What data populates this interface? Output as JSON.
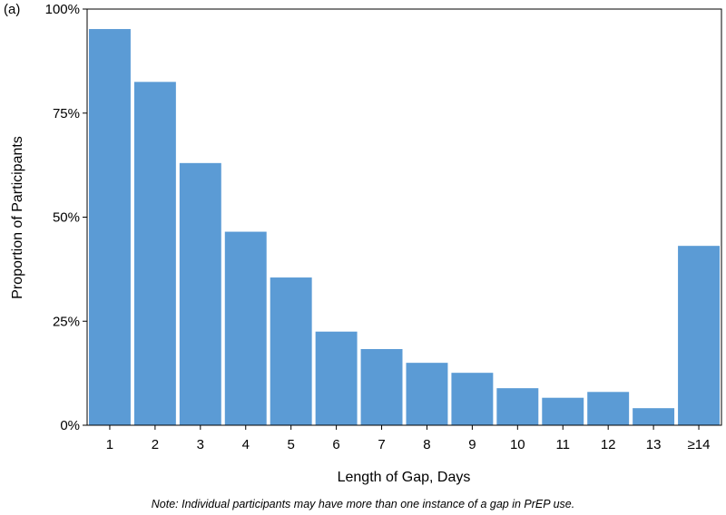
{
  "panel_label": "(a)",
  "note": "Note: Individual participants may have more than one instance of a gap in PrEP use.",
  "chart_data": {
    "type": "bar",
    "categories": [
      "1",
      "2",
      "3",
      "4",
      "5",
      "6",
      "7",
      "8",
      "9",
      "10",
      "11",
      "12",
      "13",
      "≥14"
    ],
    "values": [
      95.2,
      82.5,
      63.0,
      46.5,
      35.5,
      22.5,
      18.3,
      15.0,
      12.6,
      8.9,
      6.6,
      8.0,
      4.1,
      43.1
    ],
    "title": "",
    "xlabel": "Length of Gap, Days",
    "ylabel": "Proportion of Participants",
    "ylim": [
      0,
      100
    ],
    "yticks": [
      0,
      25,
      50,
      75,
      100
    ],
    "ytick_labels": [
      "0%",
      "25%",
      "50%",
      "75%",
      "100%"
    ],
    "bar_color": "#5b9bd5",
    "grid": false
  }
}
